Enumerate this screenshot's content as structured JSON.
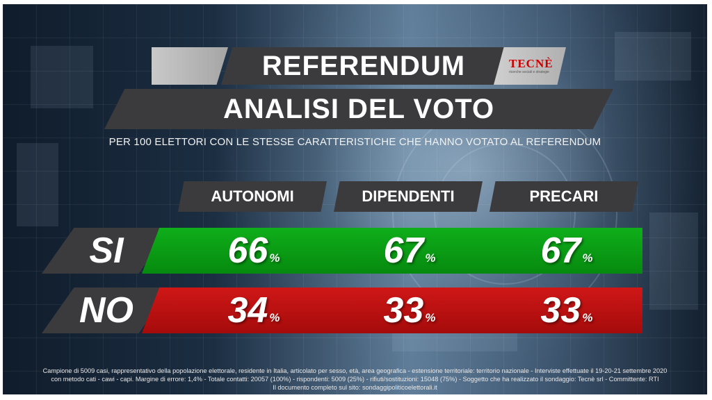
{
  "header": {
    "title_line1": "REFERENDUM",
    "title_line2": "ANALISI DEL VOTO",
    "logo_text": "TECNÈ",
    "logo_tagline": "ricerche sociali e strategie"
  },
  "subtitle": "PER 100 ELETTORI CON LE STESSE CARATTERISTICHE CHE HANNO VOTATO AL REFERENDUM",
  "table": {
    "columns": [
      "AUTONOMI",
      "DIPENDENTI",
      "PRECARI"
    ],
    "rows": [
      {
        "label": "SI",
        "color": "#0fae1a",
        "values": [
          "66",
          "67",
          "67"
        ]
      },
      {
        "label": "NO",
        "color": "#cf1717",
        "values": [
          "34",
          "33",
          "33"
        ]
      }
    ],
    "unit": "%"
  },
  "footer": {
    "line1": "Campione di 5009 casi, rappresentativo della popolazione elettorale, residente in Italia, articolato per sesso, età, area geografica - estensione territoriale: territorio nazionale - Interviste effettuate il 19-20-21 settembre 2020",
    "line2": "con metodo cati - cawi - capi. Margine di errore: 1,4% - Totale contatti: 20057 (100%) - rispondenti: 5009 (25%) - rifiuti/sostituzioni: 15048 (75%) - Soggetto che ha realizzato il sondaggio: Tecnè srl - Committente: RTI",
    "line3": "Il documento completo sul sito: sondaggipoliticoelettorali.it"
  }
}
